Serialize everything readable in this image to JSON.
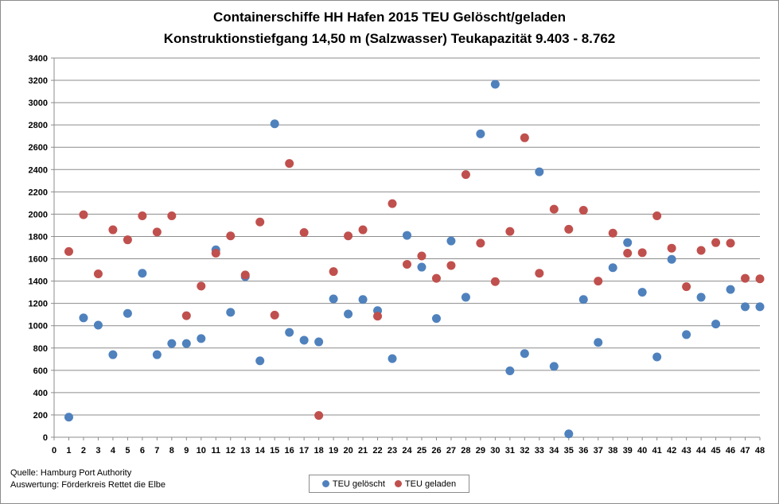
{
  "title_line1": "Containerschiffe HH Hafen 2015 TEU Gelöscht/geladen",
  "title_line2": "Konstruktionstiefgang  14,50 m (Salzwasser)   Teukapazität   9.403 - 8.762",
  "source_line1": "Quelle: Hamburg Port Authority",
  "source_line2": "Auswertung: Förderkreis Rettet die Elbe",
  "colors": {
    "geloescht": "#4f81bd",
    "geladen": "#c0504d",
    "grid": "#8c8c8c"
  },
  "chart_data": {
    "type": "scatter",
    "title": "Containerschiffe HH Hafen 2015 TEU Gelöscht/geladen",
    "subtitle": "Konstruktionstiefgang  14,50 m (Salzwasser)   Teukapazität   9.403 - 8.762",
    "xlabel": "",
    "ylabel": "",
    "xlim": [
      0,
      48
    ],
    "ylim": [
      0,
      3400
    ],
    "x_ticks": [
      0,
      1,
      2,
      3,
      4,
      5,
      6,
      7,
      8,
      9,
      10,
      11,
      12,
      13,
      14,
      15,
      16,
      17,
      18,
      19,
      20,
      21,
      22,
      23,
      24,
      25,
      26,
      27,
      28,
      29,
      30,
      31,
      32,
      33,
      34,
      35,
      36,
      37,
      38,
      39,
      40,
      41,
      42,
      43,
      44,
      45,
      46,
      47,
      48
    ],
    "y_ticks": [
      0,
      200,
      400,
      600,
      800,
      1000,
      1200,
      1400,
      1600,
      1800,
      2000,
      2200,
      2400,
      2600,
      2800,
      3000,
      3200,
      3400
    ],
    "grid": "horizontal",
    "legend_position": "bottom",
    "series": [
      {
        "name": "TEU gelöscht",
        "color": "#4f81bd",
        "x": [
          1,
          2,
          3,
          4,
          5,
          6,
          7,
          8,
          9,
          10,
          11,
          12,
          13,
          14,
          15,
          16,
          17,
          18,
          19,
          20,
          21,
          22,
          23,
          24,
          25,
          26,
          27,
          28,
          29,
          30,
          31,
          32,
          33,
          34,
          35,
          36,
          37,
          38,
          39,
          40,
          41,
          42,
          43,
          44,
          45,
          46,
          47,
          48
        ],
        "y": [
          180,
          1070,
          1005,
          740,
          1110,
          1470,
          740,
          840,
          840,
          885,
          1680,
          1120,
          1440,
          685,
          2810,
          940,
          870,
          855,
          1240,
          1105,
          1235,
          1135,
          705,
          1810,
          1525,
          1065,
          1760,
          1255,
          2720,
          3165,
          595,
          750,
          2380,
          635,
          30,
          1235,
          850,
          1520,
          1745,
          1300,
          720,
          1595,
          920,
          1255,
          1015,
          1325,
          1170,
          1170
        ]
      },
      {
        "name": "TEU geladen",
        "color": "#c0504d",
        "x": [
          1,
          2,
          3,
          4,
          5,
          6,
          7,
          8,
          9,
          10,
          11,
          12,
          13,
          14,
          15,
          16,
          17,
          18,
          19,
          20,
          21,
          22,
          23,
          24,
          25,
          26,
          27,
          28,
          29,
          30,
          31,
          32,
          33,
          34,
          35,
          36,
          37,
          38,
          39,
          40,
          41,
          42,
          43,
          44,
          45,
          46,
          47,
          48
        ],
        "y": [
          1665,
          1995,
          1465,
          1860,
          1770,
          1985,
          1840,
          1985,
          1090,
          1355,
          1650,
          1805,
          1455,
          1930,
          1095,
          2455,
          1835,
          195,
          1485,
          1805,
          1860,
          1085,
          2095,
          1550,
          1625,
          1425,
          1540,
          2355,
          1740,
          1395,
          1845,
          2685,
          1470,
          2045,
          1865,
          2035,
          1400,
          1830,
          1650,
          1655,
          1985,
          1695,
          1350,
          1675,
          1745,
          1740,
          1425,
          1420
        ]
      }
    ]
  }
}
